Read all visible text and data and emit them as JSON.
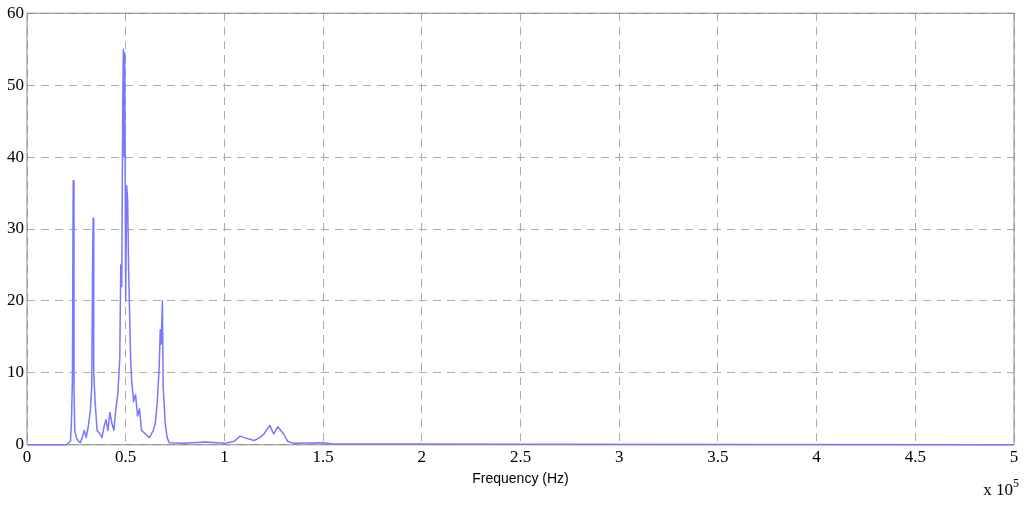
{
  "chart_data": {
    "type": "line",
    "xlabel": "Frequency (Hz)",
    "annotations": [
      "x 10$^{5}$"
    ],
    "x": [
      0,
      0.2,
      0.22,
      0.225,
      0.23,
      0.234,
      0.238,
      0.242,
      0.25,
      0.26,
      0.27,
      0.28,
      0.29,
      0.3,
      0.31,
      0.32,
      0.328,
      0.332,
      0.335,
      0.338,
      0.345,
      0.355,
      0.37,
      0.38,
      0.39,
      0.4,
      0.41,
      0.42,
      0.43,
      0.44,
      0.45,
      0.46,
      0.47,
      0.475,
      0.48,
      0.485,
      0.488,
      0.492,
      0.495,
      0.5,
      0.505,
      0.51,
      0.515,
      0.52,
      0.525,
      0.53,
      0.54,
      0.55,
      0.56,
      0.57,
      0.58,
      0.6,
      0.62,
      0.64,
      0.65,
      0.66,
      0.67,
      0.675,
      0.68,
      0.686,
      0.69,
      0.7,
      0.71,
      0.72,
      0.8,
      0.9,
      1.0,
      1.05,
      1.08,
      1.1,
      1.15,
      1.18,
      1.2,
      1.23,
      1.25,
      1.27,
      1.3,
      1.32,
      1.35,
      1.5,
      1.55,
      1.8,
      1.9,
      5
    ],
    "series": [
      {
        "color": "#7777ff",
        "values": [
          0,
          0,
          0.5,
          3,
          9,
          36.7,
          8,
          2,
          1,
          0.5,
          0.3,
          1,
          2,
          1,
          2.5,
          4.5,
          8,
          24,
          31.5,
          10,
          6,
          2,
          1.5,
          1,
          2.5,
          3.5,
          2,
          4.5,
          3,
          2,
          5,
          7,
          12,
          25,
          22,
          47,
          55,
          40,
          54.5,
          20,
          36,
          34,
          24,
          18,
          12,
          9,
          6,
          7,
          4,
          5,
          2,
          1.5,
          1,
          2,
          3,
          6,
          11,
          16,
          14,
          20,
          8,
          3,
          1,
          0.3,
          0.2,
          0.4,
          0.2,
          0.5,
          1.2,
          1,
          0.6,
          1,
          1.5,
          2.7,
          1.5,
          2.5,
          1.5,
          0.5,
          0.2,
          0.3,
          0.1,
          0.1,
          0.1,
          0
        ]
      }
    ],
    "xlim": [
      0,
      5
    ],
    "xticks": [
      0,
      0.5,
      1,
      1.5,
      2,
      2.5,
      3,
      3.5,
      4,
      4.5,
      5
    ],
    "ylim": [
      0,
      60
    ],
    "yticks": [
      0,
      10,
      20,
      30,
      40,
      50,
      60
    ],
    "grid": true,
    "legend": false,
    "marker": "none",
    "line_style": "solid"
  }
}
